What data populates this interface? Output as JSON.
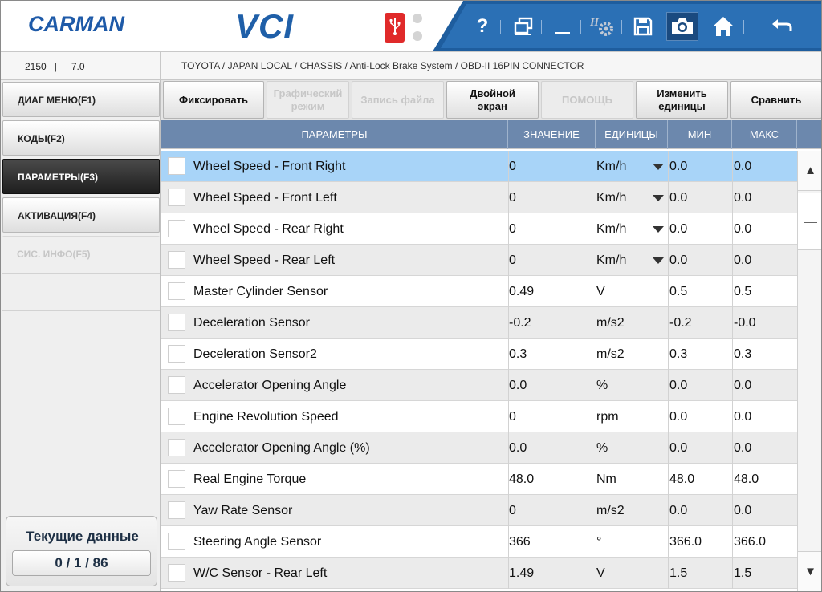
{
  "header": {
    "brand": "CARMAN",
    "product": "VCI",
    "icons": [
      "help-icon",
      "multi-window-icon",
      "minimize-icon",
      "settings-icon",
      "save-icon",
      "camera-icon",
      "home-icon",
      "back-icon"
    ],
    "help_glyph": "?"
  },
  "infobar": {
    "left_a": "2150",
    "left_sep": "|",
    "left_b": "7.0",
    "breadcrumb": "TOYOTA / JAPAN LOCAL / CHASSIS / Anti-Lock Brake System / OBD-II 16PIN CONNECTOR"
  },
  "sidebar": {
    "items": [
      {
        "label": "ДИАГ МЕНЮ(F1)"
      },
      {
        "label": "КОДЫ(F2)"
      },
      {
        "label": "ПАРАМЕТРЫ(F3)"
      },
      {
        "label": "АКТИВАЦИЯ(F4)"
      },
      {
        "label": "СИС. ИНФО(F5)"
      }
    ],
    "current_title": "Текущие данные",
    "current_count": "0 / 1 / 86"
  },
  "buttons": [
    {
      "label": "Фиксировать",
      "enabled": true
    },
    {
      "label": "Графический\nрежим",
      "enabled": false
    },
    {
      "label": "Запись файла",
      "enabled": false
    },
    {
      "label": "Двойной\nэкран",
      "enabled": true
    },
    {
      "label": "ПОМОЩЬ",
      "enabled": false
    },
    {
      "label": "Изменить\nединицы",
      "enabled": true
    },
    {
      "label": "Сравнить",
      "enabled": true
    }
  ],
  "table": {
    "headers": [
      "ПАРАМЕТРЫ",
      "ЗНАЧЕНИЕ",
      "ЕДИНИЦЫ",
      "МИН",
      "МАКС"
    ],
    "rows": [
      {
        "name": "Wheel Speed - Front Right",
        "value": "0",
        "unit": "Km/h",
        "dropdown": true,
        "min": "0.0",
        "max": "0.0"
      },
      {
        "name": "Wheel Speed - Front Left",
        "value": "0",
        "unit": "Km/h",
        "dropdown": true,
        "min": "0.0",
        "max": "0.0"
      },
      {
        "name": "Wheel Speed - Rear Right",
        "value": "0",
        "unit": "Km/h",
        "dropdown": true,
        "min": "0.0",
        "max": "0.0"
      },
      {
        "name": "Wheel Speed - Rear Left",
        "value": "0",
        "unit": "Km/h",
        "dropdown": true,
        "min": "0.0",
        "max": "0.0"
      },
      {
        "name": "Master Cylinder Sensor",
        "value": "0.49",
        "unit": "V",
        "dropdown": false,
        "min": "0.5",
        "max": "0.5"
      },
      {
        "name": "Deceleration Sensor",
        "value": "-0.2",
        "unit": "m/s2",
        "dropdown": false,
        "min": "-0.2",
        "max": "-0.0"
      },
      {
        "name": "Deceleration Sensor2",
        "value": "0.3",
        "unit": "m/s2",
        "dropdown": false,
        "min": "0.3",
        "max": "0.3"
      },
      {
        "name": "Accelerator Opening Angle",
        "value": "0.0",
        "unit": "%",
        "dropdown": false,
        "min": "0.0",
        "max": "0.0"
      },
      {
        "name": "Engine Revolution Speed",
        "value": "0",
        "unit": "rpm",
        "dropdown": false,
        "min": "0.0",
        "max": "0.0"
      },
      {
        "name": "Accelerator Opening Angle (%)",
        "value": "0.0",
        "unit": "%",
        "dropdown": false,
        "min": "0.0",
        "max": "0.0"
      },
      {
        "name": "Real Engine Torque",
        "value": "48.0",
        "unit": "Nm",
        "dropdown": false,
        "min": "48.0",
        "max": "48.0"
      },
      {
        "name": "Yaw Rate Sensor",
        "value": "0",
        "unit": "m/s2",
        "dropdown": false,
        "min": "0.0",
        "max": "0.0"
      },
      {
        "name": "Steering Angle Sensor",
        "value": "366",
        "unit": "°",
        "dropdown": false,
        "min": "366.0",
        "max": "366.0"
      },
      {
        "name": "W/C Sensor - Rear Left",
        "value": "1.49",
        "unit": "V",
        "dropdown": false,
        "min": "1.5",
        "max": "1.5"
      }
    ]
  },
  "scrollbar": {
    "up_glyph": "▲",
    "down_glyph": "▼"
  }
}
